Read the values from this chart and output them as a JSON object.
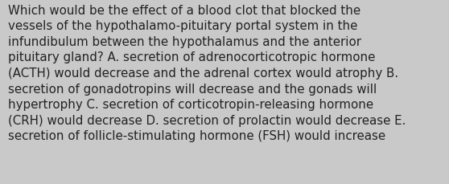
{
  "lines": [
    "Which would be the effect of a blood clot that blocked the",
    "vessels of the hypothalamo-pituitary portal system in the",
    "infundibulum between the hypothalamus and the anterior",
    "pituitary gland? A. secretion of adrenocorticotropic hormone",
    "(ACTH) would decrease and the adrenal cortex would atrophy B.",
    "secretion of gonadotropins will decrease and the gonads will",
    "hypertrophy C. secretion of corticotropin-releasing hormone",
    "(CRH) would decrease D. secretion of prolactin would decrease E.",
    "secretion of follicle-stimulating hormone (FSH) would increase"
  ],
  "background_color": "#c9c9c9",
  "text_color": "#222222",
  "font_size": 10.8,
  "font_family": "DejaVu Sans",
  "fig_width": 5.58,
  "fig_height": 2.3,
  "dpi": 100
}
